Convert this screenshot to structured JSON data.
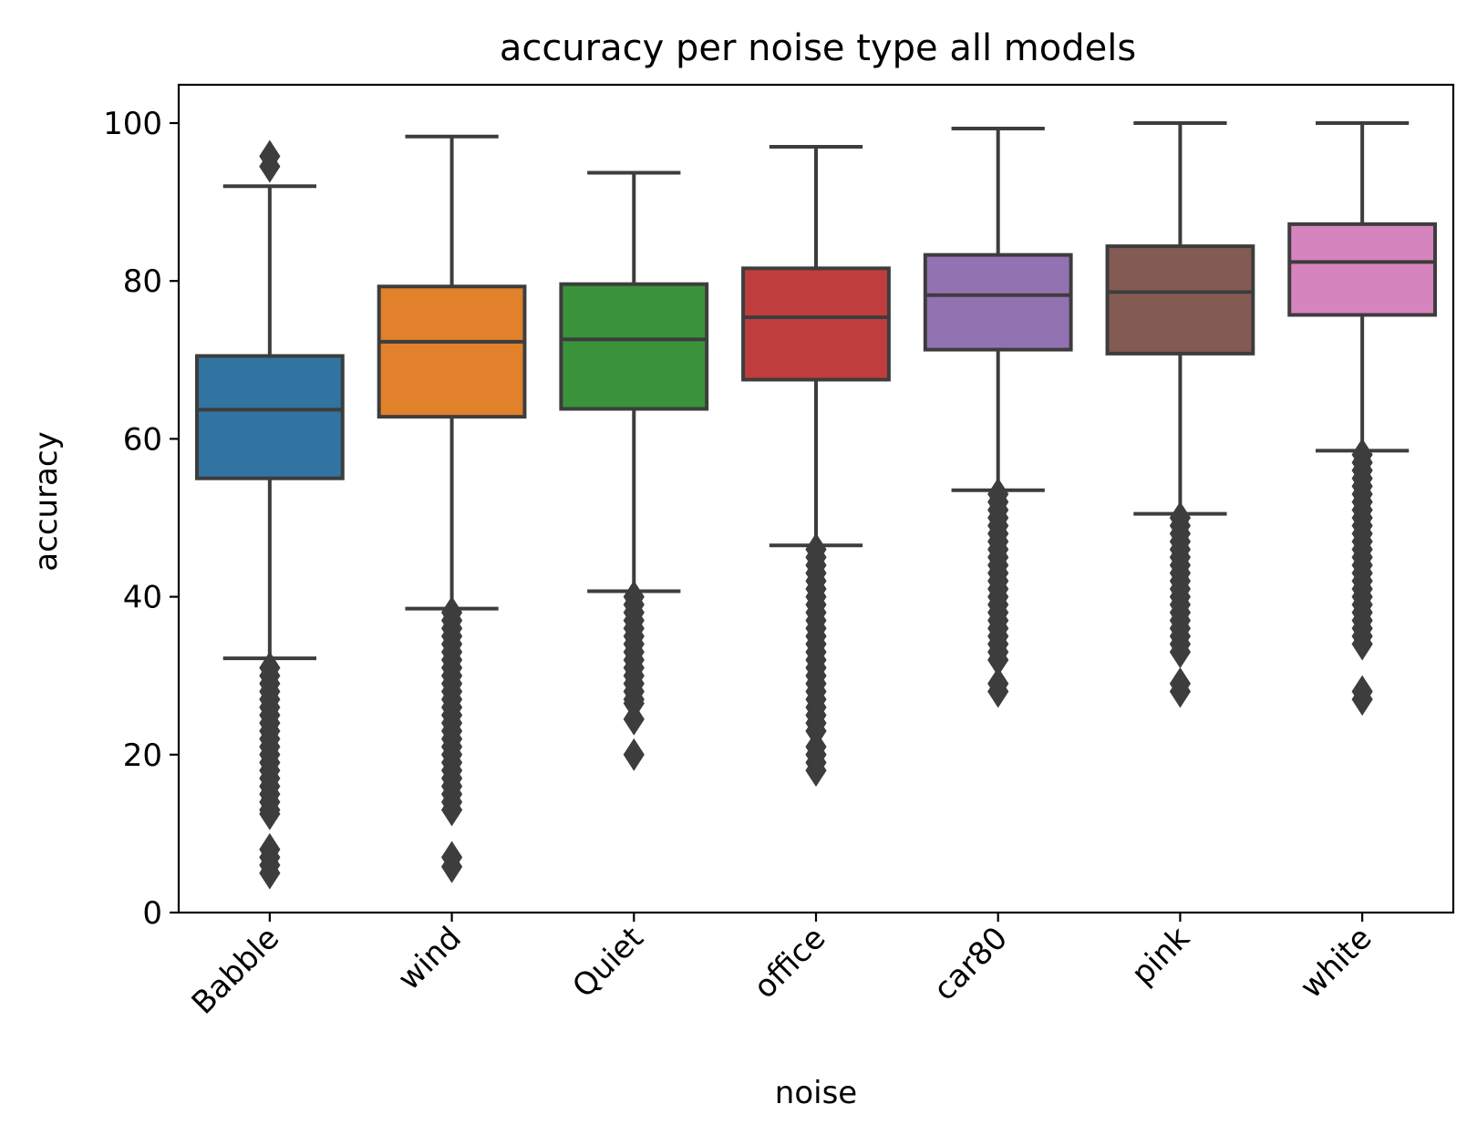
{
  "chart_data": {
    "type": "box",
    "title": "accuracy per noise type all models",
    "xlabel": "noise",
    "ylabel": "accuracy",
    "ylim": [
      0,
      105
    ],
    "yticks": [
      0,
      20,
      40,
      60,
      80,
      100
    ],
    "grid": false,
    "legend": "none",
    "categories": [
      "Babble",
      "wind",
      "Quiet",
      "office",
      "car80",
      "pink",
      "white"
    ],
    "series": [
      {
        "category": "Babble",
        "color": "#3274a1",
        "whisker_low": 32.2,
        "q1": 55.0,
        "median": 63.7,
        "q3": 70.5,
        "whisker_high": 92.0,
        "outliers": [
          95.8,
          94.5,
          31,
          30,
          29,
          28,
          27,
          26,
          25,
          24,
          23,
          22,
          21,
          20,
          19,
          18,
          17,
          16,
          15,
          14,
          13,
          12.5,
          8,
          7,
          6,
          5
        ]
      },
      {
        "category": "wind",
        "color": "#e1812c",
        "whisker_low": 38.5,
        "q1": 62.8,
        "median": 72.3,
        "q3": 79.3,
        "whisker_high": 98.3,
        "outliers": [
          38,
          37,
          36,
          35,
          34,
          33,
          32,
          31,
          30,
          29,
          28,
          27,
          26,
          25,
          24,
          23,
          22,
          21,
          20,
          19,
          18,
          17,
          16,
          15,
          14,
          13,
          7,
          5.8
        ]
      },
      {
        "category": "Quiet",
        "color": "#3a923a",
        "whisker_low": 40.7,
        "q1": 63.8,
        "median": 72.6,
        "q3": 79.6,
        "whisker_high": 93.7,
        "outliers": [
          40,
          39,
          38,
          37,
          36,
          35,
          34,
          33,
          32,
          31,
          30,
          29,
          28,
          27,
          26.5,
          24.5,
          20
        ]
      },
      {
        "category": "office",
        "color": "#c03d3e",
        "whisker_low": 46.5,
        "q1": 67.5,
        "median": 75.4,
        "q3": 81.6,
        "whisker_high": 97.0,
        "outliers": [
          46,
          45,
          44,
          43,
          42,
          41,
          40,
          39,
          38,
          37,
          36,
          35,
          34,
          33,
          32,
          31,
          30,
          29,
          28,
          27,
          26,
          25,
          24,
          23,
          21,
          20,
          19,
          18
        ]
      },
      {
        "category": "car80",
        "color": "#9372b2",
        "whisker_low": 53.5,
        "q1": 71.3,
        "median": 78.2,
        "q3": 83.3,
        "whisker_high": 99.3,
        "outliers": [
          53,
          52,
          51,
          50,
          49,
          48,
          47,
          46,
          45,
          44,
          43,
          42,
          41,
          40,
          39,
          38,
          37,
          36,
          35,
          34,
          33,
          32,
          29,
          28
        ]
      },
      {
        "category": "pink",
        "color": "#845b53",
        "whisker_low": 50.5,
        "q1": 70.8,
        "median": 78.6,
        "q3": 84.4,
        "whisker_high": 100.0,
        "outliers": [
          50,
          49,
          48,
          47,
          46,
          45,
          44,
          43,
          42,
          41,
          40,
          39,
          38,
          37,
          36,
          35,
          34,
          33,
          29,
          28
        ]
      },
      {
        "category": "white",
        "color": "#d684bd",
        "whisker_low": 58.5,
        "q1": 75.7,
        "median": 82.4,
        "q3": 87.2,
        "whisker_high": 100.0,
        "outliers": [
          58,
          57,
          56,
          55,
          54,
          53,
          52,
          51,
          50,
          49,
          48,
          47,
          46,
          45,
          44,
          43,
          42,
          41,
          40,
          39,
          38,
          37,
          36,
          35,
          34,
          28,
          27
        ]
      }
    ]
  }
}
